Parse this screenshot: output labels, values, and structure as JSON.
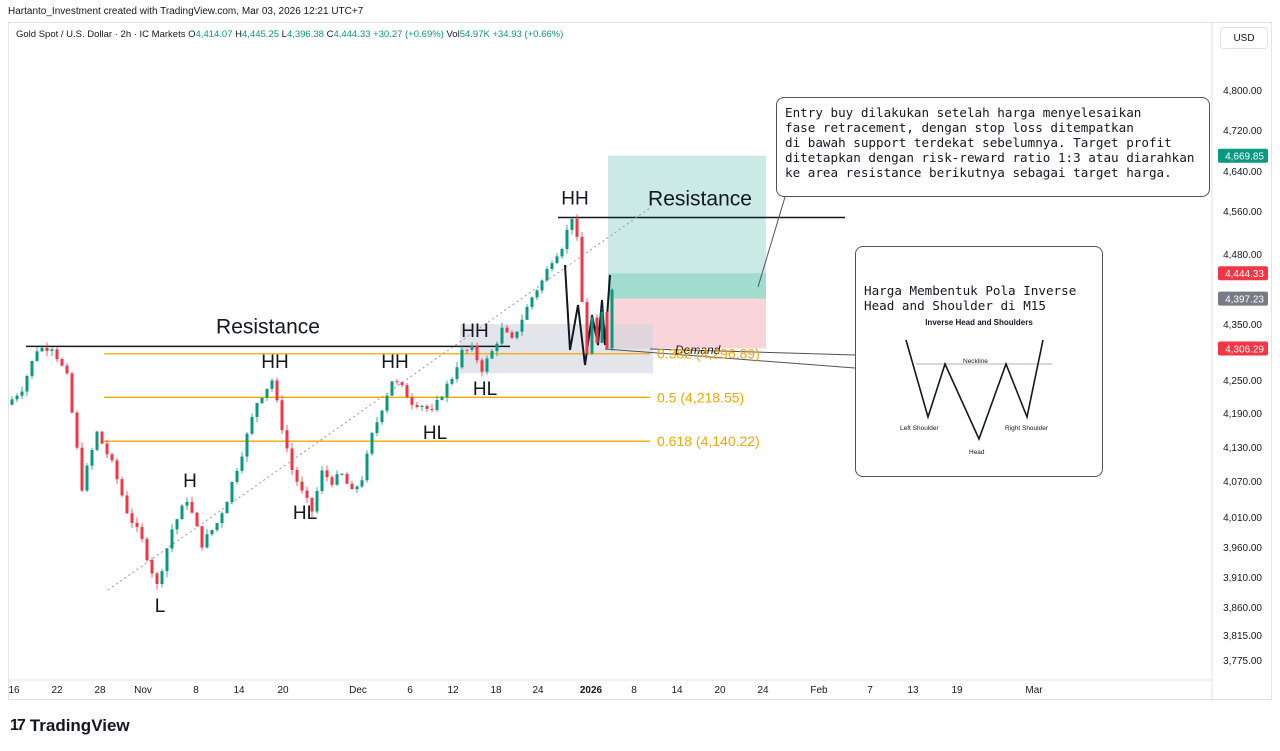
{
  "header": {
    "attribution": "Hartanto_Investment created with TradingView.com, Mar 03, 2026 12:21 UTC+7",
    "symbol": "Gold Spot / U.S. Dollar · 2h · IC Markets",
    "o_label": "O",
    "o": "4,414.07",
    "h_label": "H",
    "h": "4,445.25",
    "l_label": "L",
    "l": "4,396.38",
    "c_label": "C",
    "c": "4,444.33",
    "change": "+30.27 (+0.69%)",
    "vol_label": "Vol",
    "vol": "54.97K",
    "vol_change": "+34.93 (+0.66%)",
    "currency": "USD"
  },
  "footer": {
    "brand": "TradingView"
  },
  "notes": {
    "entry": "Entry buy dilakukan setelah harga menyelesaikan\nfase retracement, dengan stop loss ditempatkan\ndi bawah support terdekat sebelumnya. Target profit\nditetapkan dengan risk-reward ratio 1:3 atau diarahkan\nke area resistance berikutnya sebagai target harga.",
    "pattern": "Harga Membentuk Pola Inverse\nHead and Shoulder di M15",
    "diagram": {
      "title": "Inverse Head and Shoulders",
      "neckline": "Neckline",
      "left_shoulder": "Left Shoulder",
      "head": "Head",
      "right_shoulder": "Right Shoulder"
    }
  },
  "chart_data": {
    "type": "candlestick",
    "symbol": "XAUUSD",
    "timeframe": "2h",
    "ylim": [
      3745,
      4840
    ],
    "y_ticks": [
      4800,
      4720,
      4640,
      4560,
      4480,
      4350,
      4250,
      4190,
      4130,
      4070,
      4010,
      3960,
      3910,
      3860,
      3815,
      3775
    ],
    "y_tick_labels": [
      "4,800.00",
      "4,720.00",
      "4,640.00",
      "4,560.00",
      "4,480.00",
      "4,350.00",
      "4,250.00",
      "4,190.00",
      "4,130.00",
      "4,070.00",
      "4,010.00",
      "3,960.00",
      "3,910.00",
      "3,860.00",
      "3,815.00",
      "3,775.00"
    ],
    "x_tick_labels": [
      "16",
      "22",
      "28",
      "Nov",
      "8",
      "14",
      "20",
      "Dec",
      "6",
      "12",
      "18",
      "24",
      "2026",
      "8",
      "14",
      "20",
      "24",
      "Feb",
      "7",
      "13",
      "19",
      "Mar"
    ],
    "price_tags": [
      {
        "label": "4,669.85",
        "color": "#089981"
      },
      {
        "label": "4,444.33",
        "color": "#f23645"
      },
      {
        "label": "4,397.23",
        "color": "#787b86"
      },
      {
        "label": "4,306.29",
        "color": "#f23645"
      }
    ],
    "price_path": [
      [
        0,
        4205
      ],
      [
        3,
        4235
      ],
      [
        6,
        4305
      ],
      [
        9,
        4310
      ],
      [
        12,
        4255
      ],
      [
        15,
        4060
      ],
      [
        18,
        4155
      ],
      [
        21,
        4100
      ],
      [
        24,
        4020
      ],
      [
        27,
        3970
      ],
      [
        30,
        3895
      ],
      [
        33,
        3990
      ],
      [
        36,
        4040
      ],
      [
        39,
        3965
      ],
      [
        42,
        4000
      ],
      [
        44,
        4040
      ],
      [
        47,
        4120
      ],
      [
        50,
        4210
      ],
      [
        53,
        4250
      ],
      [
        55,
        4165
      ],
      [
        57,
        4090
      ],
      [
        59,
        4050
      ],
      [
        61,
        4020
      ],
      [
        63,
        4085
      ],
      [
        65,
        4070
      ],
      [
        67,
        4080
      ],
      [
        69,
        4050
      ],
      [
        71,
        4075
      ],
      [
        73,
        4150
      ],
      [
        75,
        4200
      ],
      [
        77,
        4250
      ],
      [
        79,
        4235
      ],
      [
        81,
        4210
      ],
      [
        83,
        4205
      ],
      [
        85,
        4190
      ],
      [
        87,
        4225
      ],
      [
        89,
        4255
      ],
      [
        91,
        4300
      ],
      [
        93,
        4305
      ],
      [
        95,
        4270
      ],
      [
        97,
        4300
      ],
      [
        99,
        4340
      ],
      [
        101,
        4320
      ],
      [
        103,
        4360
      ],
      [
        105,
        4400
      ],
      [
        107,
        4430
      ],
      [
        109,
        4470
      ],
      [
        111,
        4495
      ],
      [
        113,
        4550
      ],
      [
        114,
        4505
      ],
      [
        115,
        4390
      ],
      [
        116,
        4300
      ],
      [
        117,
        4360
      ],
      [
        118,
        4310
      ],
      [
        119,
        4370
      ],
      [
        120,
        4310
      ],
      [
        121,
        4420
      ]
    ],
    "resistance_levels": [
      {
        "label": "Resistance",
        "price": 4310
      },
      {
        "label": "Resistance",
        "price": 4548
      }
    ],
    "fib_levels": [
      {
        "label": "0.382 (4,296.89)",
        "price": 4296.89
      },
      {
        "label": "0.5 (4,218.55)",
        "price": 4218.55
      },
      {
        "label": "0.618 (4,140.22)",
        "price": 4140.22
      }
    ],
    "demand_zone": {
      "label": "Demand",
      "top": 4350,
      "bottom": 4262
    },
    "position": {
      "target": 4669.85,
      "entry": 4444.33,
      "current": 4397.23,
      "stop": 4306.29
    },
    "swing_labels": [
      {
        "label": "L",
        "i": 30,
        "price": 3895,
        "pos": "below"
      },
      {
        "label": "H",
        "i": 36,
        "price": 4040,
        "pos": "above"
      },
      {
        "label": "HH",
        "i": 53,
        "price": 4250,
        "pos": "above"
      },
      {
        "label": "HL",
        "i": 59,
        "price": 4050,
        "pos": "below"
      },
      {
        "label": "HH",
        "i": 77,
        "price": 4250,
        "pos": "above"
      },
      {
        "label": "HL",
        "i": 85,
        "price": 4190,
        "pos": "below"
      },
      {
        "label": "HH",
        "i": 93,
        "price": 4305,
        "pos": "above"
      },
      {
        "label": "HL",
        "i": 95,
        "price": 4270,
        "pos": "below"
      },
      {
        "label": "HH",
        "i": 113,
        "price": 4550,
        "pos": "above"
      }
    ]
  }
}
